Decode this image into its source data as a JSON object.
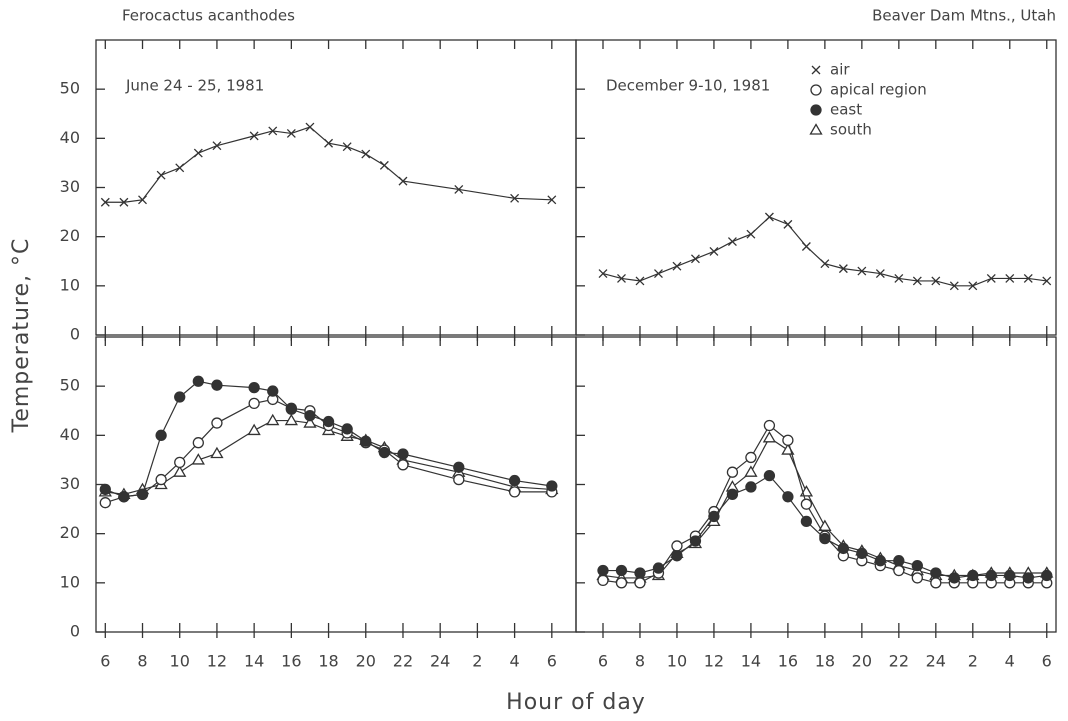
{
  "title": "Ferocactus acanthodes",
  "subtitle": "Beaver Dam Mtns., Utah",
  "ylabel": "Temperature, °C",
  "xlabel": "Hour of day",
  "chart_data": [
    {
      "type": "line",
      "annotation": "June 24 - 25, 1981",
      "xlim": [
        5.5,
        31.3
      ],
      "ylim": [
        0,
        60
      ],
      "xticks": [
        6,
        8,
        10,
        12,
        14,
        16,
        18,
        20,
        22,
        24,
        26,
        28,
        30
      ],
      "yticks": [
        0,
        10,
        20,
        30,
        40,
        50
      ],
      "x": [
        6,
        7,
        8,
        9,
        10,
        11,
        12,
        14,
        15,
        16,
        17,
        18,
        19,
        20,
        21,
        22,
        25,
        28,
        30
      ],
      "series": [
        {
          "marker": "x",
          "values": [
            27,
            27,
            27.5,
            32.5,
            34,
            37,
            38.5,
            40.5,
            41.5,
            41,
            42.3,
            39,
            38.3,
            36.8,
            34.5,
            31.3,
            29.6,
            27.8,
            27.5
          ]
        }
      ]
    },
    {
      "type": "line",
      "annotation": "December 9-10, 1981",
      "xlim": [
        4.54,
        30.5
      ],
      "ylim": [
        0,
        60
      ],
      "xticks": [
        6,
        8,
        10,
        12,
        14,
        16,
        18,
        20,
        22,
        24,
        26,
        28,
        30
      ],
      "yticks": [
        0,
        10,
        20,
        30,
        40,
        50
      ],
      "legend": [
        {
          "name": "air",
          "marker": "x"
        },
        {
          "name": "apical region",
          "marker": "open-circle"
        },
        {
          "name": "east",
          "marker": "filled-circle"
        },
        {
          "name": "south",
          "marker": "triangle"
        }
      ],
      "x": [
        6,
        7,
        8,
        9,
        10,
        11,
        12,
        13,
        14,
        15,
        16,
        17,
        18,
        19,
        20,
        21,
        22,
        23,
        24,
        25,
        26,
        27,
        28,
        29,
        30
      ],
      "series": [
        {
          "marker": "x",
          "values": [
            12.5,
            11.5,
            11,
            12.5,
            14,
            15.5,
            17,
            19,
            20.5,
            24,
            22.5,
            18,
            14.5,
            13.5,
            13,
            12.5,
            11.5,
            11,
            11,
            10,
            10,
            11.5,
            11.5,
            11.5,
            11
          ]
        }
      ]
    },
    {
      "type": "line",
      "xlim": [
        5.5,
        31.3
      ],
      "ylim": [
        0,
        60
      ],
      "xticks": [
        6,
        8,
        10,
        12,
        14,
        16,
        18,
        20,
        22,
        24,
        {
          "value": 26,
          "label": "2"
        },
        {
          "value": 28,
          "label": "4"
        },
        {
          "value": 30,
          "label": "6"
        }
      ],
      "yticks": [
        0,
        10,
        20,
        30,
        40,
        50
      ],
      "x": [
        6,
        7,
        8,
        9,
        10,
        11,
        12,
        14,
        15,
        16,
        17,
        18,
        19,
        20,
        21,
        22,
        25,
        28,
        30
      ],
      "series": [
        {
          "marker": "triangle",
          "values": [
            28.5,
            28,
            29,
            30,
            32.5,
            35,
            36.3,
            41,
            43,
            43,
            42.5,
            41,
            39.8,
            39,
            37.5,
            35,
            32.5,
            29.5,
            29
          ]
        },
        {
          "marker": "open-circle",
          "values": [
            26.3,
            27.5,
            28,
            31,
            34.5,
            38.5,
            42.5,
            46.5,
            47.3,
            45.5,
            45,
            42,
            40.5,
            38.5,
            37,
            34,
            31,
            28.5,
            28.5
          ]
        },
        {
          "marker": "filled-circle",
          "values": [
            29,
            27.5,
            28,
            40,
            47.8,
            51,
            50.2,
            49.7,
            49,
            45.3,
            44,
            42.8,
            41.3,
            38.8,
            36.5,
            36.2,
            33.5,
            30.8,
            29.7
          ]
        }
      ]
    },
    {
      "type": "line",
      "xlim": [
        4.54,
        30.5
      ],
      "ylim": [
        0,
        60
      ],
      "xticks": [
        6,
        8,
        10,
        12,
        14,
        16,
        18,
        20,
        22,
        24,
        {
          "value": 26,
          "label": "2"
        },
        {
          "value": 28,
          "label": "4"
        },
        {
          "value": 30,
          "label": "6"
        }
      ],
      "yticks": [
        0,
        10,
        20,
        30,
        40,
        50
      ],
      "x": [
        6,
        7,
        8,
        9,
        10,
        11,
        12,
        13,
        14,
        15,
        16,
        17,
        18,
        19,
        20,
        21,
        22,
        23,
        24,
        25,
        26,
        27,
        28,
        29,
        30
      ],
      "series": [
        {
          "marker": "triangle",
          "values": [
            11.5,
            11,
            11,
            11.5,
            16,
            18,
            22.5,
            29.5,
            32.5,
            39.5,
            37,
            28.5,
            21.5,
            17.5,
            16.5,
            15,
            13.5,
            12.5,
            11.5,
            11.5,
            11.5,
            12,
            12,
            12,
            12
          ]
        },
        {
          "marker": "open-circle",
          "values": [
            10.5,
            10,
            10,
            12,
            17.5,
            19.5,
            24.5,
            32.5,
            35.5,
            42,
            39,
            26,
            19.5,
            15.5,
            14.5,
            13.5,
            12.5,
            11,
            10,
            10,
            10,
            10,
            10,
            10,
            10
          ]
        },
        {
          "marker": "filled-circle",
          "values": [
            12.5,
            12.5,
            12,
            13,
            15.5,
            18.5,
            23.5,
            28,
            29.5,
            31.8,
            27.5,
            22.5,
            19,
            17,
            16,
            14.5,
            14.5,
            13.5,
            12,
            11,
            11.5,
            11.5,
            11.5,
            11,
            11.5
          ]
        }
      ]
    }
  ]
}
